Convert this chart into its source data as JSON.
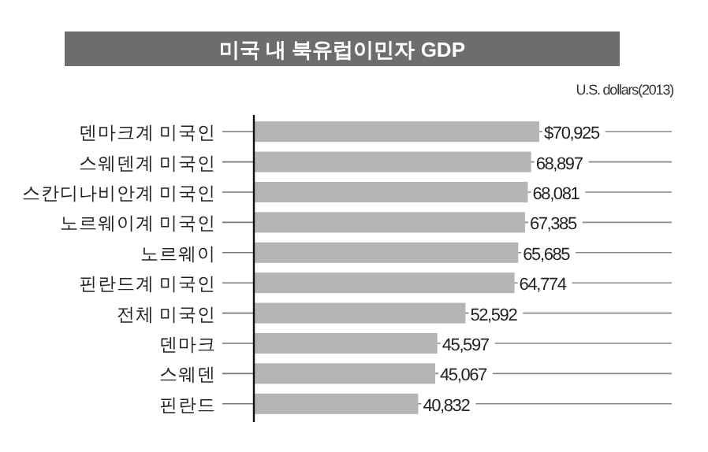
{
  "chart_data": {
    "type": "bar",
    "orientation": "horizontal",
    "title": "미국 내 북유럽이민자 GDP",
    "annotations": [
      "U.S. dollars(2013)"
    ],
    "categories": [
      "덴마크계 미국인",
      "스웨덴계 미국인",
      "스칸디나비안계 미국인",
      "노르웨이계 미국인",
      "노르웨이",
      "핀란드계 미국인",
      "전체 미국인",
      "덴마크",
      "스웨덴",
      "핀란드"
    ],
    "values": [
      70925,
      68897,
      68081,
      67385,
      65685,
      64774,
      52592,
      45597,
      45067,
      40832
    ],
    "value_labels": [
      "$70,925",
      "68,897",
      "68,081",
      "67,385",
      "65,685",
      "64,774",
      "52,592",
      "45,597",
      "45,067",
      "40,832"
    ],
    "color": "#b5b5b5",
    "grid": "y"
  }
}
